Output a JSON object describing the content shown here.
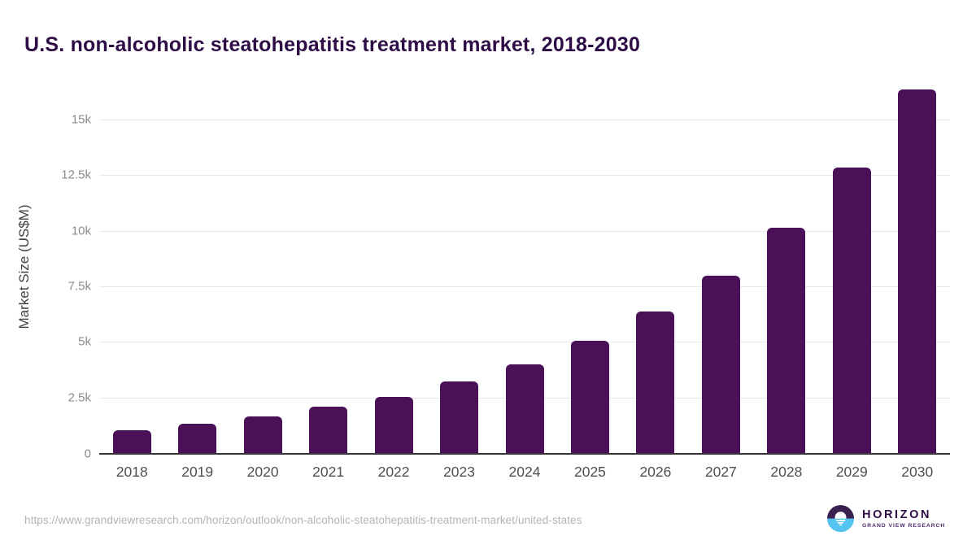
{
  "title": "U.S. non-alcoholic steatohepatitis treatment market, 2018-2030",
  "chart_data": {
    "type": "bar",
    "title": "U.S. non-alcoholic steatohepatitis treatment market, 2018-2030",
    "categories": [
      "2018",
      "2019",
      "2020",
      "2021",
      "2022",
      "2023",
      "2024",
      "2025",
      "2026",
      "2027",
      "2028",
      "2029",
      "2030"
    ],
    "values": [
      1040,
      1310,
      1630,
      2080,
      2540,
      3210,
      3990,
      5050,
      6350,
      7980,
      10130,
      12840,
      16350
    ],
    "xlabel": "",
    "ylabel": "Market Size (US$M)",
    "ylim": [
      0,
      16750
    ],
    "yticks": [
      {
        "value": 0,
        "label": "0"
      },
      {
        "value": 2500,
        "label": "2.5k"
      },
      {
        "value": 5000,
        "label": "5k"
      },
      {
        "value": 7500,
        "label": "7.5k"
      },
      {
        "value": 10000,
        "label": "10k"
      },
      {
        "value": 12500,
        "label": "12.5k"
      },
      {
        "value": 15000,
        "label": "15k"
      }
    ],
    "grid": true,
    "legend": "none",
    "bar_color": "#4a1158"
  },
  "colors": {
    "title": "#2e0d46",
    "bar": "#4a1158",
    "gridline": "#e9e9ea",
    "axis_line": "#37373a",
    "logo_purple": "#39204f",
    "logo_blue": "#55c4f0"
  },
  "footer": {
    "source_url": "https://www.grandviewresearch.com/horizon/outlook/non-alcoholic-steatohepatitis-treatment-market/united-states",
    "logo": {
      "name": "HORIZON",
      "subtitle": "GRAND VIEW RESEARCH"
    }
  }
}
